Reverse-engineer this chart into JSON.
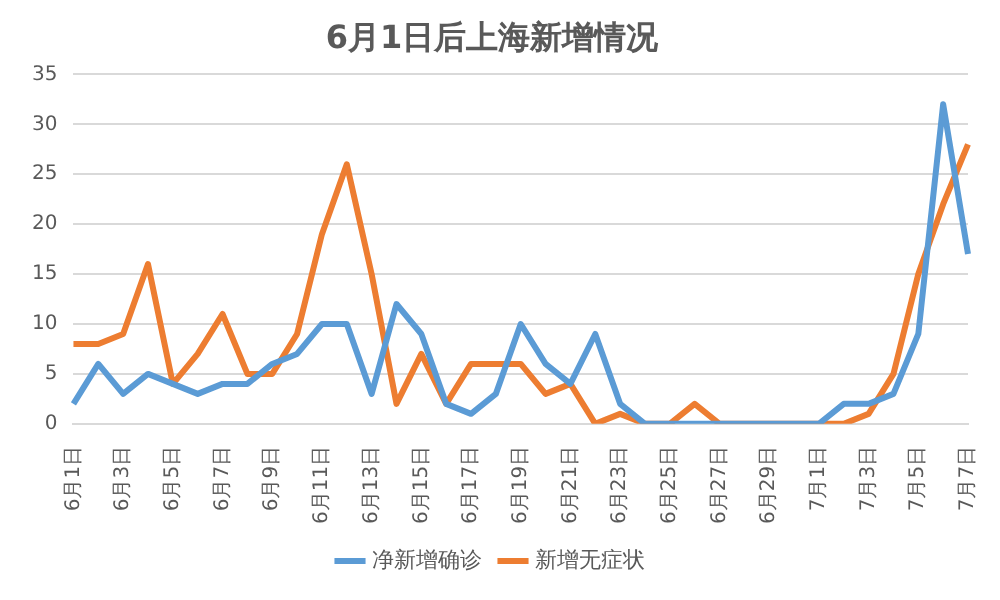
{
  "chart_data": {
    "type": "line",
    "title": "6月1日后上海新增情况",
    "categories": [
      "6月1日",
      null,
      "6月3日",
      null,
      "6月5日",
      null,
      "6月7日",
      null,
      "6月9日",
      null,
      "6月11日",
      null,
      "6月13日",
      null,
      "6月15日",
      null,
      "6月17日",
      null,
      "6月19日",
      null,
      "6月21日",
      null,
      "6月23日",
      null,
      "6月25日",
      null,
      "6月27日",
      null,
      "6月29日",
      null,
      "7月1日",
      null,
      "7月3日",
      null,
      "7月5日",
      null,
      "7月7日"
    ],
    "series": [
      {
        "name": "净新增确诊",
        "color": "#5b9bd5",
        "values": [
          2,
          6,
          3,
          5,
          4,
          3,
          4,
          4,
          6,
          7,
          10,
          10,
          3,
          12,
          9,
          2,
          1,
          3,
          10,
          6,
          4,
          9,
          2,
          0,
          0,
          0,
          0,
          0,
          0,
          0,
          0,
          2,
          2,
          3,
          9,
          32,
          17
        ]
      },
      {
        "name": "新增无症状",
        "color": "#ed7d31",
        "values": [
          8,
          8,
          9,
          16,
          4,
          7,
          11,
          5,
          5,
          9,
          19,
          26,
          15,
          2,
          7,
          2,
          6,
          6,
          6,
          3,
          4,
          0,
          1,
          0,
          0,
          2,
          0,
          0,
          0,
          0,
          0,
          0,
          1,
          5,
          15,
          22,
          28
        ]
      }
    ],
    "ylim": [
      0,
      35
    ],
    "yticks": [
      0,
      5,
      10,
      15,
      20,
      25,
      30,
      35
    ],
    "grid": "y",
    "legend": "bottom",
    "marker": "none",
    "line_style": "solid"
  }
}
